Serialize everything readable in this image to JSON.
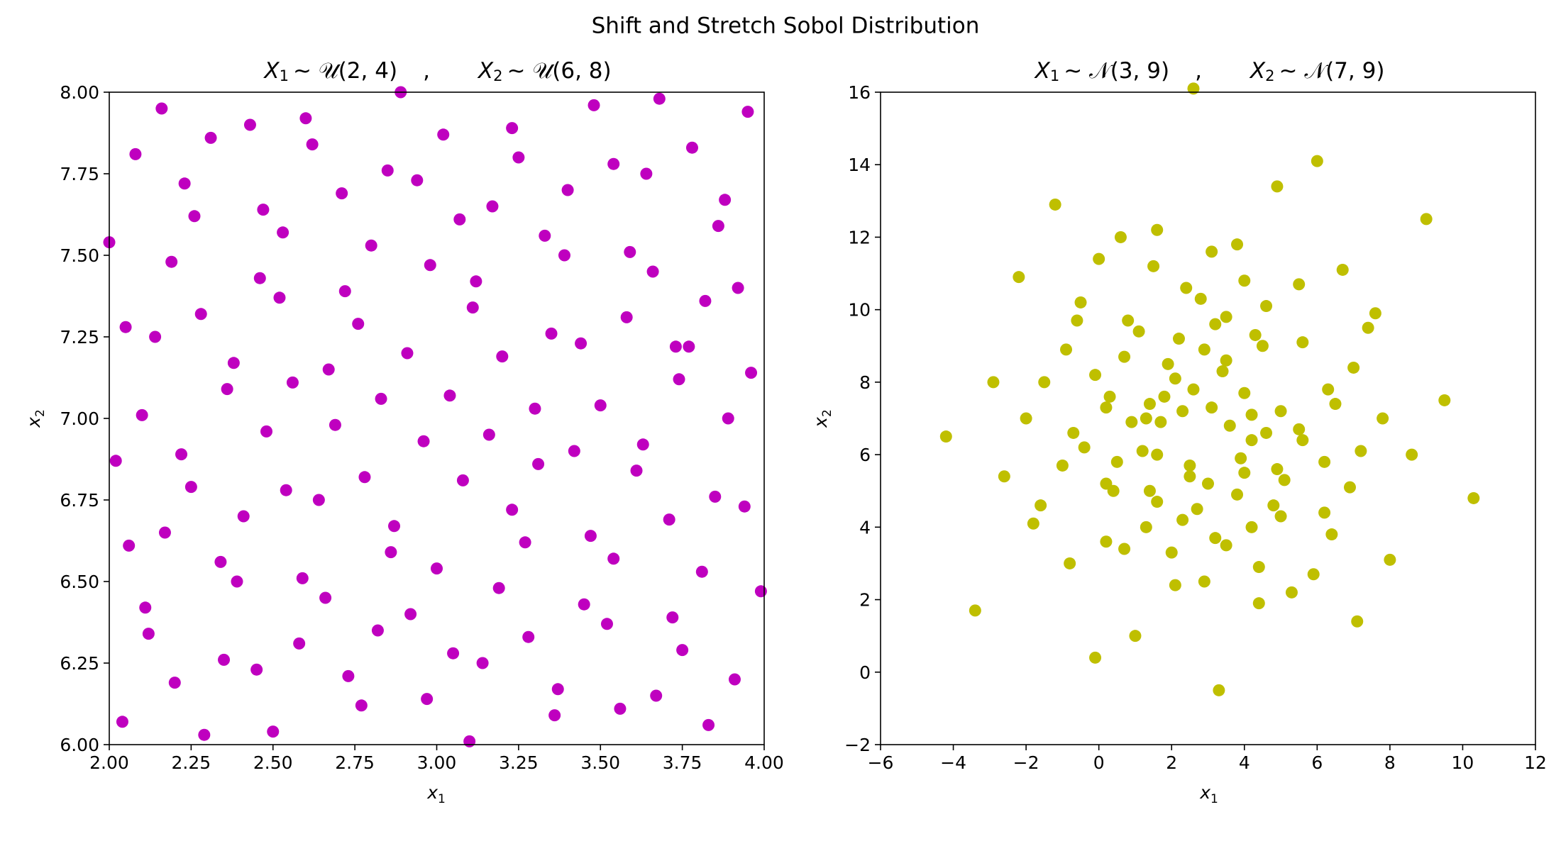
{
  "figure": {
    "suptitle": "Shift and Stretch Sobol Distribution"
  },
  "chart_data": [
    {
      "type": "scatter",
      "title": "X_1 ~ U(2,4)    ,     X_2 ~ U(6,8)",
      "title_parts": {
        "var1": "X",
        "sub1": "1",
        "dist1": "~ 𝒰(2, 4)",
        "sep": ",",
        "var2": "X",
        "sub2": "2",
        "dist2": "~ 𝒰(6, 8)"
      },
      "xlabel": "x_1",
      "ylabel": "x_2",
      "xlabel_parts": {
        "base": "x",
        "sub": "1"
      },
      "ylabel_parts": {
        "base": "x",
        "sub": "2"
      },
      "xlim": [
        2.0,
        4.0
      ],
      "ylim": [
        6.0,
        8.0
      ],
      "xticks": [
        "2.00",
        "2.25",
        "2.50",
        "2.75",
        "3.00",
        "3.25",
        "3.50",
        "3.75",
        "4.00"
      ],
      "yticks": [
        "6.00",
        "6.25",
        "6.50",
        "6.75",
        "7.00",
        "7.25",
        "7.50",
        "7.75",
        "8.00"
      ],
      "grid": false,
      "color": "#bf00bf",
      "x": [
        2.0,
        2.16,
        2.43,
        2.89,
        2.08,
        2.31,
        2.62,
        2.6,
        3.02,
        3.48,
        3.68,
        3.23,
        2.23,
        2.26,
        2.71,
        2.85,
        2.94,
        3.4,
        3.54,
        3.64,
        3.78,
        3.88,
        3.86,
        3.95,
        3.25,
        2.19,
        2.46,
        2.47,
        2.53,
        2.8,
        2.98,
        3.07,
        3.17,
        3.33,
        3.39,
        3.59,
        3.66,
        3.58,
        3.73,
        3.92,
        3.82,
        2.28,
        2.52,
        2.72,
        2.76,
        3.11,
        3.12,
        3.35,
        2.05,
        2.14,
        2.38,
        2.36,
        2.56,
        2.67,
        2.91,
        3.2,
        3.44,
        3.42,
        3.74,
        3.77,
        3.96,
        2.1,
        2.48,
        2.69,
        2.83,
        2.96,
        3.04,
        3.16,
        3.3,
        3.5,
        3.63,
        3.89,
        2.02,
        2.22,
        2.25,
        2.54,
        2.64,
        2.78,
        2.87,
        3.08,
        3.23,
        3.31,
        3.61,
        3.71,
        3.85,
        3.94,
        2.17,
        2.41,
        2.06,
        2.34,
        2.39,
        2.59,
        2.66,
        2.86,
        3.0,
        3.19,
        3.27,
        3.45,
        3.47,
        3.54,
        3.81,
        3.99,
        2.11,
        2.12,
        2.35,
        2.45,
        2.58,
        2.82,
        2.92,
        3.05,
        3.14,
        3.28,
        3.37,
        3.52,
        3.72,
        3.91,
        2.2,
        2.04,
        2.29,
        2.5,
        2.73,
        2.77,
        2.97,
        3.1,
        3.36,
        3.56,
        3.67,
        3.75,
        3.83
      ],
      "y": [
        7.54,
        7.95,
        7.9,
        8.0,
        7.81,
        7.86,
        7.84,
        7.92,
        7.87,
        7.96,
        7.98,
        7.89,
        7.72,
        7.62,
        7.69,
        7.76,
        7.73,
        7.7,
        7.78,
        7.75,
        7.83,
        7.67,
        7.59,
        7.94,
        7.8,
        7.48,
        7.43,
        7.64,
        7.57,
        7.53,
        7.47,
        7.61,
        7.65,
        7.56,
        7.5,
        7.51,
        7.45,
        7.31,
        7.22,
        7.4,
        7.36,
        7.32,
        7.37,
        7.39,
        7.29,
        7.34,
        7.42,
        7.26,
        7.28,
        7.25,
        7.17,
        7.09,
        7.11,
        7.15,
        7.2,
        7.19,
        7.23,
        6.9,
        7.12,
        7.22,
        7.14,
        7.01,
        6.96,
        6.98,
        7.06,
        6.93,
        7.07,
        6.95,
        7.03,
        7.04,
        6.92,
        7.0,
        6.87,
        6.89,
        6.79,
        6.78,
        6.75,
        6.82,
        6.67,
        6.81,
        6.72,
        6.86,
        6.84,
        6.69,
        6.76,
        6.73,
        6.65,
        6.7,
        6.61,
        6.56,
        6.5,
        6.51,
        6.45,
        6.59,
        6.54,
        6.48,
        6.62,
        6.43,
        6.64,
        6.57,
        6.53,
        6.47,
        6.42,
        6.34,
        6.26,
        6.23,
        6.31,
        6.35,
        6.4,
        6.28,
        6.25,
        6.33,
        6.17,
        6.37,
        6.39,
        6.2,
        6.19,
        6.07,
        6.03,
        6.04,
        6.21,
        6.12,
        6.14,
        6.01,
        6.09,
        6.11,
        6.15,
        6.29,
        6.06
      ]
    },
    {
      "type": "scatter",
      "title": "X_1 ~ N(3,9)    ,     X_2 ~ N(7,9)",
      "title_parts": {
        "var1": "X",
        "sub1": "1",
        "dist1": "~ 𝒩(3, 9)",
        "sep": ",",
        "var2": "X",
        "sub2": "2",
        "dist2": "~ 𝒩(7, 9)"
      },
      "xlabel": "x_1",
      "ylabel": "x_2",
      "xlabel_parts": {
        "base": "x",
        "sub": "1"
      },
      "ylabel_parts": {
        "base": "x",
        "sub": "2"
      },
      "xlim": [
        -6,
        12
      ],
      "ylim": [
        -2,
        16
      ],
      "xticks": [
        "−6",
        "−4",
        "−2",
        "0",
        "2",
        "4",
        "6",
        "8",
        "10",
        "12"
      ],
      "yticks": [
        "−2",
        "0",
        "2",
        "4",
        "6",
        "8",
        "10",
        "12",
        "14",
        "16"
      ],
      "grid": false,
      "color": "#bfbf00",
      "x": [
        2.6,
        6.0,
        4.9,
        -1.2,
        1.6,
        3.8,
        9.0,
        0.6,
        3.1,
        6.7,
        -2.2,
        0.0,
        1.5,
        4.0,
        2.4,
        2.8,
        5.5,
        4.6,
        3.5,
        7.6,
        -0.5,
        -0.6,
        0.8,
        1.1,
        2.2,
        3.2,
        4.3,
        7.4,
        -0.9,
        0.7,
        1.9,
        2.9,
        3.5,
        4.5,
        5.6,
        7.0,
        -0.1,
        3.4,
        4.0,
        6.3,
        1.4,
        1.8,
        2.1,
        -2.9,
        -1.5,
        0.3,
        0.2,
        1.3,
        1.7,
        2.6,
        3.1,
        4.2,
        5.0,
        6.5,
        -2.0,
        9.5,
        7.8,
        0.9,
        2.3,
        -0.7,
        -0.4,
        1.2,
        3.6,
        4.2,
        5.6,
        5.5,
        4.6,
        -4.2,
        0.5,
        1.6,
        3.9,
        7.2,
        8.6,
        -1.0,
        2.5,
        4.0,
        4.9,
        3.0,
        6.2,
        5.1,
        -2.6,
        0.2,
        0.4,
        1.4,
        1.6,
        2.5,
        6.9,
        4.8,
        3.8,
        10.3,
        -1.6,
        -1.8,
        1.3,
        2.3,
        2.7,
        3.2,
        4.2,
        5.0,
        6.2,
        6.4,
        0.2,
        0.7,
        3.5,
        2.0,
        8.0,
        4.4,
        -0.8,
        5.9,
        2.9,
        2.1,
        5.3,
        4.4,
        -3.4,
        7.1,
        1.0,
        -0.1,
        3.3
      ],
      "y": [
        16.1,
        14.1,
        13.4,
        12.9,
        12.2,
        11.8,
        12.5,
        12.0,
        11.6,
        11.1,
        10.9,
        11.4,
        11.2,
        10.8,
        10.6,
        10.3,
        10.7,
        10.1,
        9.8,
        9.9,
        10.2,
        9.7,
        9.7,
        9.4,
        9.2,
        9.6,
        9.3,
        9.5,
        8.9,
        8.7,
        8.5,
        8.9,
        8.6,
        9.0,
        9.1,
        8.4,
        8.2,
        8.3,
        7.7,
        7.8,
        7.4,
        7.6,
        8.1,
        8.0,
        8.0,
        7.6,
        7.3,
        7.0,
        6.9,
        7.8,
        7.3,
        7.1,
        7.2,
        7.4,
        7.0,
        7.5,
        7.0,
        6.9,
        7.2,
        6.6,
        6.2,
        6.1,
        6.8,
        6.4,
        6.4,
        6.7,
        6.6,
        6.5,
        5.8,
        6.0,
        5.9,
        6.1,
        6.0,
        5.7,
        5.7,
        5.5,
        5.6,
        5.2,
        5.8,
        5.3,
        5.4,
        5.2,
        5.0,
        5.0,
        4.7,
        5.4,
        5.1,
        4.6,
        4.9,
        4.8,
        4.6,
        4.1,
        4.0,
        4.2,
        4.5,
        3.7,
        4.0,
        4.3,
        4.4,
        3.8,
        3.6,
        3.4,
        3.5,
        3.3,
        3.1,
        2.9,
        3.0,
        2.7,
        2.5,
        2.4,
        2.2,
        1.9,
        1.7,
        1.4,
        1.0,
        0.4,
        -0.5
      ]
    }
  ]
}
